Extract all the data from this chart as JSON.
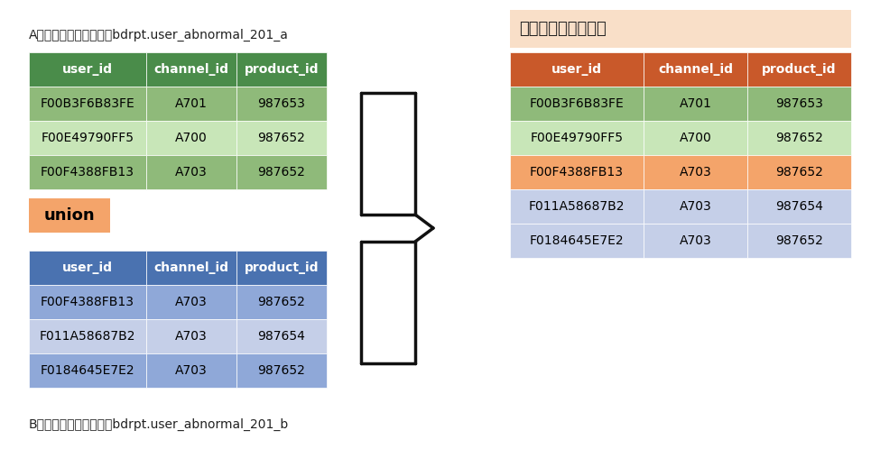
{
  "title_a": "A员工提供的异常用户：bdrpt.user_abnormal_201_a",
  "title_b": "B员工提供的异常用户：bdrpt.user_abnormal_201_b",
  "union_label": "union",
  "merge_title": "合并集：无重复数据",
  "table_a_header": [
    "user_id",
    "channel_id",
    "product_id"
  ],
  "table_a_rows": [
    [
      "F00B3F6B83FE",
      "A701",
      "987653"
    ],
    [
      "F00E49790FF5",
      "A700",
      "987652"
    ],
    [
      "F00F4388FB13",
      "A703",
      "987652"
    ]
  ],
  "table_b_header": [
    "user_id",
    "channel_id",
    "product_id"
  ],
  "table_b_rows": [
    [
      "F00F4388FB13",
      "A703",
      "987652"
    ],
    [
      "F011A58687B2",
      "A703",
      "987654"
    ],
    [
      "F0184645E7E2",
      "A703",
      "987652"
    ]
  ],
  "table_merged_header": [
    "user_id",
    "channel_id",
    "product_id"
  ],
  "table_merged_rows": [
    [
      "F00B3F6B83FE",
      "A701",
      "987653"
    ],
    [
      "F00E49790FF5",
      "A700",
      "987652"
    ],
    [
      "F00F4388FB13",
      "A703",
      "987652"
    ],
    [
      "F011A58687B2",
      "A703",
      "987654"
    ],
    [
      "F0184645E7E2",
      "A703",
      "987652"
    ]
  ],
  "merged_row_colors": [
    "#8fba7a",
    "#c8e6b8",
    "#f4a46a",
    "#c5cfe8",
    "#c5cfe8"
  ],
  "color_green_header": "#4a8c4a",
  "color_green_row_even": "#8fba7a",
  "color_green_row_odd": "#c8e6b8",
  "color_blue_header": "#4a72b0",
  "color_blue_row_even": "#8fa8d8",
  "color_blue_row_odd": "#c5cfe8",
  "color_orange_header": "#c9592a",
  "color_orange_title_bg": "#f4c9a8",
  "color_union_bg": "#f4a46a",
  "color_merge_title_bg": "#f9dfc8",
  "bg_color": "#ffffff",
  "text_color_header": "#ffffff",
  "text_color_data": "#000000"
}
